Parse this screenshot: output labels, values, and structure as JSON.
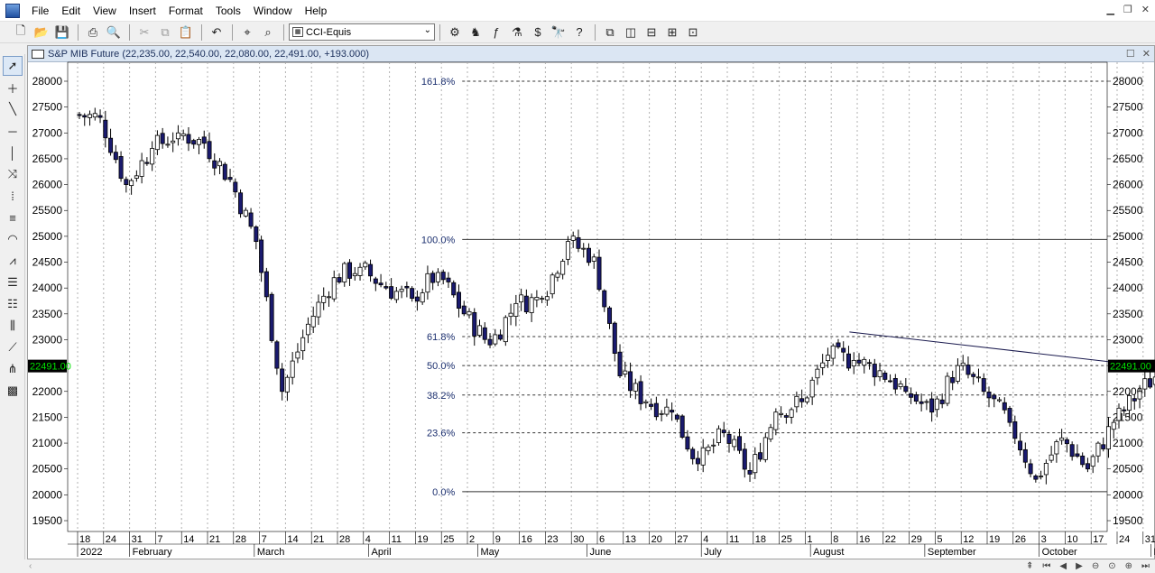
{
  "menu": [
    "File",
    "Edit",
    "View",
    "Insert",
    "Format",
    "Tools",
    "Window",
    "Help"
  ],
  "toolbar": {
    "symbol_value": "CCI-Equis"
  },
  "chart_window": {
    "title": "S&P MIB Future",
    "title_values": "(22,235.00, 22,540.00, 22,080.00, 22,491.00, +193.000)"
  },
  "chart_data": {
    "type": "candlestick",
    "y_range": [
      19500,
      28000
    ],
    "y_ticks": [
      28000,
      27500,
      27000,
      26500,
      26000,
      25500,
      25000,
      24500,
      24000,
      23500,
      23000,
      22500,
      22000,
      21500,
      21000,
      20500,
      20000,
      19500
    ],
    "y_tick_labels": [
      "28000",
      "27500",
      "27000",
      "26500",
      "26000",
      "25500",
      "25000",
      "24500",
      "24000",
      "23500",
      "23000",
      "22500",
      "22000",
      "21500",
      "21000",
      "20500",
      "20000",
      "19500"
    ],
    "last_price_label": "22491.00",
    "last_price": 22491,
    "x_tick_labels": [
      "18",
      "24",
      "31",
      "7",
      "14",
      "21",
      "28",
      "7",
      "14",
      "21",
      "28",
      "4",
      "11",
      "19",
      "25",
      "2",
      "9",
      "16",
      "23",
      "30",
      "6",
      "13",
      "20",
      "27",
      "4",
      "11",
      "18",
      "25",
      "1",
      "8",
      "16",
      "22",
      "29",
      "5",
      "12",
      "19",
      "26",
      "3",
      "10",
      "17",
      "24",
      "31"
    ],
    "x_tick_weeks": [
      0,
      1,
      2,
      3,
      4,
      5,
      6,
      7,
      8,
      9,
      10,
      11,
      12,
      13,
      14,
      15,
      16,
      17,
      18,
      19,
      20,
      21,
      22,
      23,
      24,
      25,
      26,
      27,
      28,
      29,
      30,
      31,
      32,
      33,
      34,
      35,
      36,
      37,
      38,
      39,
      40,
      41
    ],
    "x_month_labels": [
      "2022",
      "February",
      "March",
      "April",
      "May",
      "June",
      "July",
      "August",
      "September",
      "October",
      "N"
    ],
    "x_month_weeks": [
      0,
      2,
      6.8,
      11.2,
      15.4,
      19.6,
      24.0,
      28.2,
      32.6,
      37.0,
      41.3
    ],
    "fib_levels": [
      {
        "label": "161.8%",
        "value": 28000
      },
      {
        "label": "100.0%",
        "value": 24940
      },
      {
        "label": "61.8%",
        "value": 23060
      },
      {
        "label": "50.0%",
        "value": 22500
      },
      {
        "label": "38.2%",
        "value": 21930
      },
      {
        "label": "23.6%",
        "value": 21200
      },
      {
        "label": "0.0%",
        "value": 20060
      }
    ],
    "trendline": {
      "start_week": 29.7,
      "start_value": 23150,
      "end_week": 41.0,
      "end_value": 22500
    },
    "up_color": "#ffffff",
    "down_color": "#1a1a6e",
    "weekly_closes": [
      27300,
      26000,
      26700,
      27000,
      26800,
      26100,
      24900,
      22000,
      23300,
      24200,
      24400,
      24000,
      23800,
      24300,
      23500,
      22900,
      23700,
      23800,
      24900,
      24600,
      22300,
      21800,
      21600,
      20600,
      21200,
      20400,
      21600,
      21800,
      22700,
      22600,
      22400,
      22000,
      21600,
      22500,
      22000,
      21400,
      20300,
      21100,
      20500,
      21400,
      22000,
      22491
    ]
  }
}
